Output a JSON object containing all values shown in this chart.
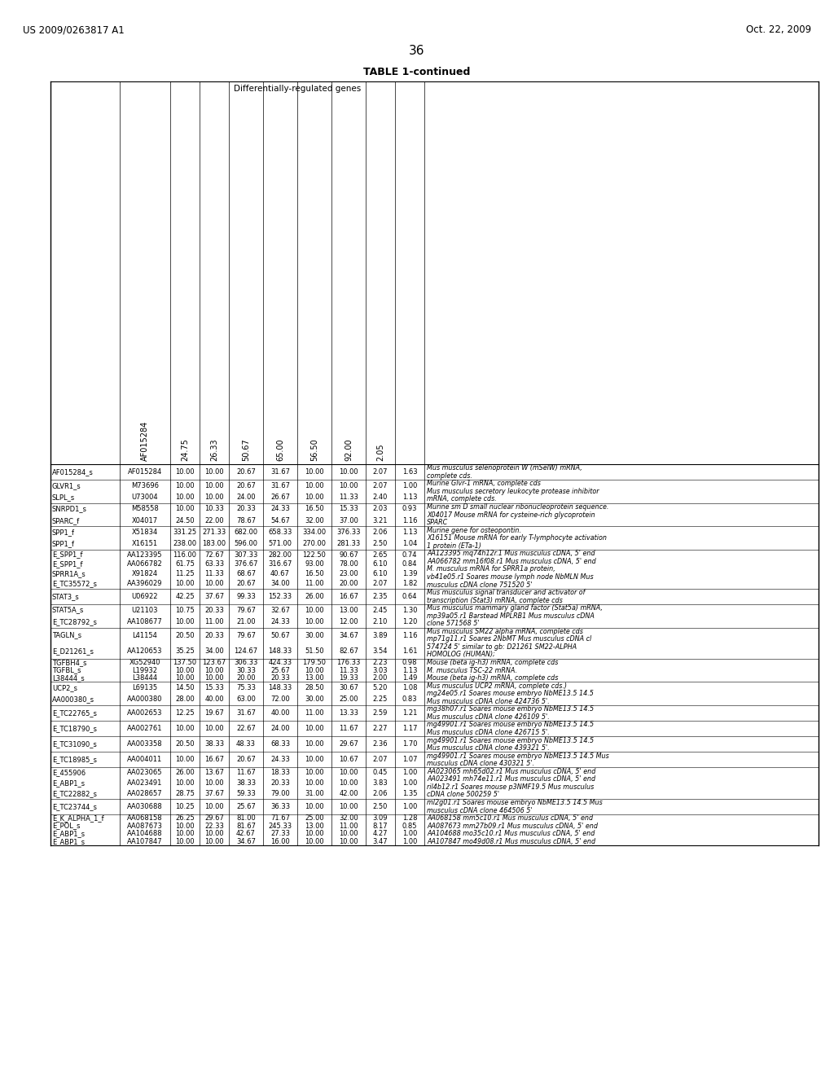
{
  "page_header_left": "US 2009/0263817 A1",
  "page_header_right": "Oct. 22, 2009",
  "page_number": "36",
  "table_title": "TABLE 1-continued",
  "table_subtitle": "Differentially-regulated genes",
  "rotated_headers": [
    "AF015284",
    "24.75",
    "26.33",
    "50.67",
    "65.00",
    "56.50",
    "92.00",
    "2.05"
  ],
  "rows": [
    {
      "ids": [
        "AF015284_s"
      ],
      "accs": [
        "AF015284"
      ],
      "c1": [
        "10.00"
      ],
      "c2": [
        "10.00"
      ],
      "c3": [
        "20.67"
      ],
      "c4": [
        "31.67"
      ],
      "c5": [
        "10.00"
      ],
      "c6": [
        "10.00"
      ],
      "c7": [
        "2.07"
      ],
      "ratio": [
        "1.63"
      ],
      "desc": [
        "Mus musculus selenoprotein W (mSelW) mRNA,",
        "complete cds."
      ]
    },
    {
      "ids": [
        "GLVR1_s",
        "SLPL_s"
      ],
      "accs": [
        "M73696",
        "U73004"
      ],
      "c1": [
        "10.00",
        "10.00"
      ],
      "c2": [
        "10.00",
        "10.00"
      ],
      "c3": [
        "20.67",
        "24.00"
      ],
      "c4": [
        "31.67",
        "26.67"
      ],
      "c5": [
        "10.00",
        "10.00"
      ],
      "c6": [
        "10.00",
        "11.33"
      ],
      "c7": [
        "2.07",
        "2.40"
      ],
      "ratio": [
        "1.00",
        "1.13"
      ],
      "desc": [
        "Murine Glvr-1 mRNA, complete cds",
        "Mus musculus secretory leukocyte protease inhibitor",
        "mRNA, complete cds."
      ]
    },
    {
      "ids": [
        "SNRPD1_s",
        "SPARC_f"
      ],
      "accs": [
        "M58558",
        "X04017"
      ],
      "c1": [
        "10.00",
        "24.50"
      ],
      "c2": [
        "10.33",
        "22.00"
      ],
      "c3": [
        "20.33",
        "78.67"
      ],
      "c4": [
        "24.33",
        "54.67"
      ],
      "c5": [
        "16.50",
        "32.00"
      ],
      "c6": [
        "15.33",
        "37.00"
      ],
      "c7": [
        "2.03",
        "3.21"
      ],
      "ratio": [
        "0.93",
        "1.16"
      ],
      "desc": [
        "Murine sm D small nuclear ribonucleoprotein sequence.",
        "X04017 Mouse mRNA for cysteine-rich glycoprotein",
        "SPARC"
      ]
    },
    {
      "ids": [
        "SPP1_f",
        "SPP1_f"
      ],
      "accs": [
        "X51834",
        "X16151"
      ],
      "c1": [
        "331.25",
        "238.00"
      ],
      "c2": [
        "271.33",
        "183.00"
      ],
      "c3": [
        "682.00",
        "596.00"
      ],
      "c4": [
        "658.33",
        "571.00"
      ],
      "c5": [
        "334.00",
        "270.00"
      ],
      "c6": [
        "376.33",
        "281.33"
      ],
      "c7": [
        "2.06",
        "2.50"
      ],
      "ratio": [
        "1.13",
        "1.04"
      ],
      "desc": [
        "Murine gene for osteopontin.",
        "X16151 Mouse mRNA for early T-lymphocyte activation",
        "1 protein (ETa-1)"
      ]
    },
    {
      "ids": [
        "E_SPP1_f",
        "E_SPP1_f",
        "SPRR1A_s",
        "E_TC35572_s"
      ],
      "accs": [
        "AA123395",
        "AA066782",
        "X91824",
        "AA396029"
      ],
      "c1": [
        "116.00",
        "61.75",
        "11.25",
        "10.00"
      ],
      "c2": [
        "72.67",
        "63.33",
        "11.33",
        "10.00"
      ],
      "c3": [
        "307.33",
        "376.67",
        "68.67",
        "20.67"
      ],
      "c4": [
        "282.00",
        "316.67",
        "40.67",
        "34.00"
      ],
      "c5": [
        "122.50",
        "93.00",
        "16.50",
        "11.00"
      ],
      "c6": [
        "90.67",
        "78.00",
        "23.00",
        "20.00"
      ],
      "c7": [
        "2.65",
        "6.10",
        "6.10",
        "2.07"
      ],
      "ratio": [
        "0.74",
        "0.84",
        "1.39",
        "1.82"
      ],
      "desc": [
        "AA123395 mq74h12r.1 Mus musculus cDNA, 5' end",
        "AA066782 mm16f08.r1 Mus musculus cDNA, 5' end",
        "M. musculus mRNA for SPRR1a protein,",
        "vb41e05.r1 Soares mouse lymph node NbMLN Mus",
        "musculus cDNA clone 751520 5'"
      ]
    },
    {
      "ids": [
        "STAT3_s"
      ],
      "accs": [
        "U06922"
      ],
      "c1": [
        "42.25"
      ],
      "c2": [
        "37.67"
      ],
      "c3": [
        "99.33"
      ],
      "c4": [
        "152.33"
      ],
      "c5": [
        "26.00"
      ],
      "c6": [
        "16.67"
      ],
      "c7": [
        "2.35"
      ],
      "ratio": [
        "0.64"
      ],
      "desc": [
        "Mus musculus signal transducer and activator of",
        "transcription (Stat3) mRNA, complete cds"
      ]
    },
    {
      "ids": [
        "STAT5A_s",
        "E_TC28792_s"
      ],
      "accs": [
        "U21103",
        "AA108677"
      ],
      "c1": [
        "10.75",
        "10.00"
      ],
      "c2": [
        "20.33",
        "11.00"
      ],
      "c3": [
        "79.67",
        "21.00"
      ],
      "c4": [
        "32.67",
        "24.33"
      ],
      "c5": [
        "10.00",
        "10.00"
      ],
      "c6": [
        "13.00",
        "12.00"
      ],
      "c7": [
        "2.45",
        "2.10"
      ],
      "ratio": [
        "1.30",
        "1.20"
      ],
      "desc": [
        "Mus musculus mammary gland factor (Stat5a) mRNA,",
        "mp39a05.r1 Barstead MPLRB1 Mus musculus cDNA",
        "clone 571568 5'"
      ]
    },
    {
      "ids": [
        "TAGLN_s",
        "E_D21261_s"
      ],
      "accs": [
        "L41154",
        "AA120653"
      ],
      "c1": [
        "20.50",
        "35.25"
      ],
      "c2": [
        "20.33",
        "34.00"
      ],
      "c3": [
        "79.67",
        "124.67"
      ],
      "c4": [
        "50.67",
        "148.33"
      ],
      "c5": [
        "30.00",
        "51.50"
      ],
      "c6": [
        "34.67",
        "82.67"
      ],
      "c7": [
        "3.89",
        "3.54"
      ],
      "ratio": [
        "1.16",
        "1.61"
      ],
      "desc": [
        "Mus musculus SM22 alpha mRNA, complete cds",
        "mp71g11.r1 Soares 2NbMT Mus musculus cDNA cl",
        "574724 5' similar to gb: D21261 SM22-ALPHA",
        "HOMOLOG (HUMAN);"
      ]
    },
    {
      "ids": [
        "TGFBH4_s",
        "TGFBL_s",
        "L38444_s"
      ],
      "accs": [
        "XG52940",
        "L19932",
        "L38444"
      ],
      "c1": [
        "137.50",
        "10.00",
        "10.00"
      ],
      "c2": [
        "123.67",
        "10.00",
        "10.00"
      ],
      "c3": [
        "306.33",
        "30.33",
        "20.00"
      ],
      "c4": [
        "424.33",
        "25.67",
        "20.33"
      ],
      "c5": [
        "179.50",
        "10.00",
        "13.00"
      ],
      "c6": [
        "176.33",
        "11.33",
        "19.33"
      ],
      "c7": [
        "2.23",
        "3.03",
        "2.00"
      ],
      "ratio": [
        "0.98",
        "1.13",
        "1.49"
      ],
      "desc": [
        "Mouse (beta ig-h3) mRNA, complete cds",
        "M. musculus TSC-22 mRNA.",
        "Mouse (beta ig-h3) mRNA, complete cds"
      ]
    },
    {
      "ids": [
        "UCP2_s",
        "AA000380_s"
      ],
      "accs": [
        "L69135",
        "AA000380"
      ],
      "c1": [
        "14.50",
        "28.00"
      ],
      "c2": [
        "15.33",
        "40.00"
      ],
      "c3": [
        "75.33",
        "63.00"
      ],
      "c4": [
        "148.33",
        "72.00"
      ],
      "c5": [
        "28.50",
        "30.00"
      ],
      "c6": [
        "30.67",
        "25.00"
      ],
      "c7": [
        "5.20",
        "2.25"
      ],
      "ratio": [
        "1.08",
        "0.83"
      ],
      "desc": [
        "Mus musculus UCP2 mRNA, complete cds.)",
        "mg24e05.r1 Soares mouse embryo NbME13.5 14.5",
        "Mus musculus cDNA clone 424736 5'."
      ]
    },
    {
      "ids": [
        "E_TC22765_s"
      ],
      "accs": [
        "AA002653"
      ],
      "c1": [
        "12.25"
      ],
      "c2": [
        "19.67"
      ],
      "c3": [
        "31.67"
      ],
      "c4": [
        "40.00"
      ],
      "c5": [
        "11.00"
      ],
      "c6": [
        "13.33"
      ],
      "c7": [
        "2.59"
      ],
      "ratio": [
        "1.21"
      ],
      "desc": [
        "mg38h07.r1 Soares mouse embryo NbME13.5 14.5",
        "Mus musculus cDNA clone 426109 5'."
      ]
    },
    {
      "ids": [
        "E_TC18790_s"
      ],
      "accs": [
        "AA002761"
      ],
      "c1": [
        "10.00"
      ],
      "c2": [
        "10.00"
      ],
      "c3": [
        "22.67"
      ],
      "c4": [
        "24.00"
      ],
      "c5": [
        "10.00"
      ],
      "c6": [
        "11.67"
      ],
      "c7": [
        "2.27"
      ],
      "ratio": [
        "1.17"
      ],
      "desc": [
        "mg49901.r1 Soares mouse embryo NbME13.5 14.5",
        "Mus musculus cDNA clone 426715 5'."
      ]
    },
    {
      "ids": [
        "E_TC31090_s"
      ],
      "accs": [
        "AA003358"
      ],
      "c1": [
        "20.50"
      ],
      "c2": [
        "38.33"
      ],
      "c3": [
        "48.33"
      ],
      "c4": [
        "68.33"
      ],
      "c5": [
        "10.00"
      ],
      "c6": [
        "29.67"
      ],
      "c7": [
        "2.36"
      ],
      "ratio": [
        "1.70"
      ],
      "desc": [
        "mg49901.r1 Soares mouse embryo NbME13.5 14.5",
        "Mus musculus cDNA clone 439321 5'."
      ]
    },
    {
      "ids": [
        "E_TC18985_s"
      ],
      "accs": [
        "AA004011"
      ],
      "c1": [
        "10.00"
      ],
      "c2": [
        "16.67"
      ],
      "c3": [
        "20.67"
      ],
      "c4": [
        "24.33"
      ],
      "c5": [
        "10.00"
      ],
      "c6": [
        "10.67"
      ],
      "c7": [
        "2.07"
      ],
      "ratio": [
        "1.07"
      ],
      "desc": [
        "mg49901.r1 Soares mouse embryo NbME13.5 14.5 Mus",
        "musculus cDNA clone 430321 5'."
      ]
    },
    {
      "ids": [
        "E_455906",
        "E_ABP1_s",
        "E_TC22882_s"
      ],
      "accs": [
        "AA023065",
        "AA023491",
        "AA028657"
      ],
      "c1": [
        "26.00",
        "10.00",
        "28.75"
      ],
      "c2": [
        "13.67",
        "10.00",
        "37.67"
      ],
      "c3": [
        "11.67",
        "38.33",
        "59.33"
      ],
      "c4": [
        "18.33",
        "20.33",
        "79.00"
      ],
      "c5": [
        "10.00",
        "10.00",
        "31.00"
      ],
      "c6": [
        "10.00",
        "10.00",
        "42.00"
      ],
      "c7": [
        "0.45",
        "3.83",
        "2.06"
      ],
      "ratio": [
        "1.00",
        "1.00",
        "1.35"
      ],
      "desc": [
        "AA023065 mh65d02.r1 Mus musculus cDNA, 5' end",
        "AA023491 mh74e11.r1 Mus musculus cDNA, 5' end",
        "ril4b12.r1 Soares mouse p3NMF19.5 Mus musculus",
        "cDNA clone 500259 5'"
      ]
    },
    {
      "ids": [
        "E_TC23744_s"
      ],
      "accs": [
        "AA030688"
      ],
      "c1": [
        "10.25"
      ],
      "c2": [
        "10.00"
      ],
      "c3": [
        "25.67"
      ],
      "c4": [
        "36.33"
      ],
      "c5": [
        "10.00"
      ],
      "c6": [
        "10.00"
      ],
      "c7": [
        "2.50"
      ],
      "ratio": [
        "1.00"
      ],
      "desc": [
        "ml2g01.r1 Soares mouse embryo NbME13.5 14.5 Mus",
        "musculus cDNA clone 464506 5'"
      ]
    },
    {
      "ids": [
        "E_K_ALPHA_1_f",
        "E_POL_s",
        "E_ABP1_s",
        "E_ABP1_s"
      ],
      "accs": [
        "AA068158",
        "AA087673",
        "AA104688",
        "AA107847"
      ],
      "c1": [
        "26.25",
        "10.00",
        "10.00",
        "10.00"
      ],
      "c2": [
        "29.67",
        "22.33",
        "10.00",
        "10.00"
      ],
      "c3": [
        "81.00",
        "81.67",
        "42.67",
        "34.67"
      ],
      "c4": [
        "71.67",
        "245.33",
        "27.33",
        "16.00"
      ],
      "c5": [
        "25.00",
        "13.00",
        "10.00",
        "10.00"
      ],
      "c6": [
        "32.00",
        "11.00",
        "10.00",
        "10.00"
      ],
      "c7": [
        "3.09",
        "8.17",
        "4.27",
        "3.47"
      ],
      "ratio": [
        "1.28",
        "0.85",
        "1.00",
        "1.00"
      ],
      "desc": [
        "AA068158 mm5c10.r1 Mus musculus cDNA, 5' end",
        "AA087673 mm27b09.r1 Mus musculus cDNA, 5' end",
        "AA104688 mo35c10.r1 Mus musculus cDNA, 5' end",
        "AA107847 mo49d08.r1 Mus musculus cDNA, 5' end"
      ]
    }
  ]
}
